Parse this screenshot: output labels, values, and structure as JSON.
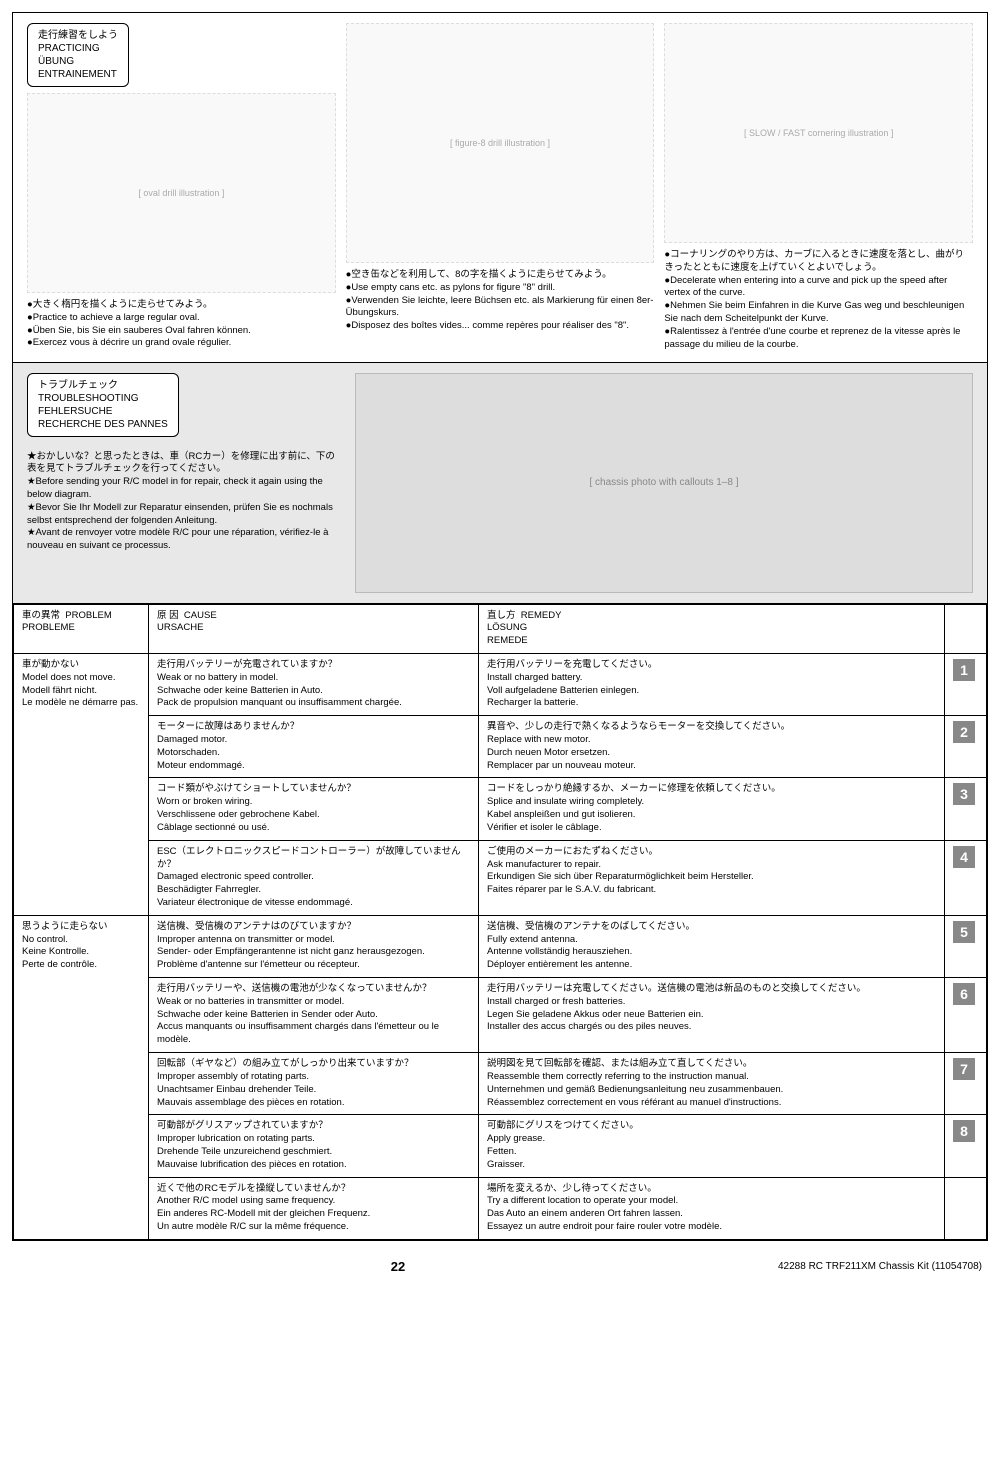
{
  "practice": {
    "heading_jp": "走行練習をしよう",
    "heading_en": "PRACTICING",
    "heading_de": "ÜBUNG",
    "heading_fr": "ENTRAINEMENT",
    "oval": {
      "jp": "●大きく楕円を描くように走らせてみよう。",
      "en": "●Practice to achieve a large regular oval.",
      "de": "●Üben Sie, bis Sie ein sauberes Oval fahren können.",
      "fr": "●Exercez vous à décrire un grand ovale régulier."
    },
    "figure8": {
      "jp": "●空き缶などを利用して、8の字を描くように走らせてみよう。",
      "en": "●Use empty cans etc. as pylons for figure \"8\" drill.",
      "de": "●Verwenden Sie leichte, leere Büchsen etc. als Markierung für einen 8er-Übungskurs.",
      "fr": "●Disposez des boîtes vides... comme repères pour réaliser des \"8\"."
    },
    "corner": {
      "jp": "●コーナリングのやり方は、カーブに入るときに速度を落とし、曲がりきったとともに速度を上げていくとよいでしょう。",
      "en": "●Decelerate when entering into a curve and pick up the speed after vertex of the curve.",
      "de": "●Nehmen Sie beim Einfahren in die Kurve Gas weg und beschleunigen Sie nach dem Scheitelpunkt der Kurve.",
      "fr": "●Ralentissez à l'entrée d'une courbe et reprenez de la vitesse après le passage du milieu de la courbe."
    }
  },
  "trouble": {
    "heading_jp": "トラブルチェック",
    "heading_en": "TROUBLESHOOTING",
    "heading_de": "FEHLERSUCHE",
    "heading_fr": "RECHERCHE DES PANNES",
    "intro_jp": "★おかしいな？と思ったときは、車（RCカー）を修理に出す前に、下の表を見てトラブルチェックを行ってください。",
    "intro_en": "★Before sending your R/C model in for repair, check it again using the below diagram.",
    "intro_de": "★Bevor Sie Ihr Modell zur Reparatur einsenden, prüfen Sie es nochmals selbst entsprechend der folgenden Anleitung.",
    "intro_fr": "★Avant de renvoyer votre modèle R/C pour une réparation, vérifiez-le à nouveau en suivant ce processus."
  },
  "table": {
    "headers": {
      "problem_jp": "車の異常",
      "problem_en": "PROBLEM",
      "problem_fr": "PROBLEME",
      "cause_jp": "原 因",
      "cause_en": "CAUSE",
      "cause_de": "URSACHE",
      "remedy_jp": "直し方",
      "remedy_en": "REMEDY",
      "remedy_de": "LÖSUNG",
      "remedy_fr": "REMEDE"
    },
    "problems": [
      {
        "label_jp": "車が動かない",
        "label_en": "Model does not move.",
        "label_de": "Modell fährt nicht.",
        "label_fr": "Le modèle ne démarre pas.",
        "rows": [
          {
            "num": "1",
            "cause_jp": "走行用バッテリーが充電されていますか？",
            "cause_en": "Weak or no battery in model.",
            "cause_de": "Schwache oder keine Batterien in Auto.",
            "cause_fr": "Pack de propulsion manquant ou insuffisamment chargée.",
            "remedy_jp": "走行用バッテリーを充電してください。",
            "remedy_en": "Install charged battery.",
            "remedy_de": "Voll aufgeladene Batterien einlegen.",
            "remedy_fr": "Recharger la batterie."
          },
          {
            "num": "2",
            "cause_jp": "モーターに故障はありませんか？",
            "cause_en": "Damaged motor.",
            "cause_de": "Motorschaden.",
            "cause_fr": "Moteur endommagé.",
            "remedy_jp": "異音や、少しの走行で熱くなるようならモーターを交換してください。",
            "remedy_en": "Replace with new motor.",
            "remedy_de": "Durch neuen Motor ersetzen.",
            "remedy_fr": "Remplacer par un nouveau moteur."
          },
          {
            "num": "3",
            "cause_jp": "コード類がやぶけてショートしていませんか？",
            "cause_en": "Worn or broken wiring.",
            "cause_de": "Verschlissene oder gebrochene Kabel.",
            "cause_fr": "Câblage sectionné ou usé.",
            "remedy_jp": "コードをしっかり絶縁するか、メーカーに修理を依頼してください。",
            "remedy_en": "Splice and insulate wiring completely.",
            "remedy_de": "Kabel anspleißen und gut isolieren.",
            "remedy_fr": "Vérifier et isoler le câblage."
          },
          {
            "num": "4",
            "cause_jp": "ESC（エレクトロニックスピードコントローラー）が故障していませんか？",
            "cause_en": "Damaged electronic speed controller.",
            "cause_de": "Beschädigter Fahrregler.",
            "cause_fr": "Variateur électronique de vitesse endommagé.",
            "remedy_jp": "ご使用のメーカーにおたずねください。",
            "remedy_en": "Ask manufacturer to repair.",
            "remedy_de": "Erkundigen Sie sich über Reparaturmöglichkeit beim Hersteller.",
            "remedy_fr": "Faites réparer par le S.A.V. du fabricant."
          }
        ]
      },
      {
        "label_jp": "思うように走らない",
        "label_en": "No control.",
        "label_de": "Keine Kontrolle.",
        "label_fr": "Perte de contrôle.",
        "rows": [
          {
            "num": "5",
            "cause_jp": "送信機、受信機のアンテナはのびていますか？",
            "cause_en": "Improper antenna on transmitter or model.",
            "cause_de": "Sender- oder Empfängerantenne ist nicht ganz herausgezogen.",
            "cause_fr": "Problème d'antenne sur l'émetteur ou récepteur.",
            "remedy_jp": "送信機、受信機のアンテナをのばしてください。",
            "remedy_en": "Fully extend antenna.",
            "remedy_de": "Antenne vollständig herausziehen.",
            "remedy_fr": "Déployer entièrement les antenne."
          },
          {
            "num": "6",
            "cause_jp": "走行用バッテリーや、送信機の電池が少なくなっていませんか？",
            "cause_en": "Weak or no batteries in transmitter or model.",
            "cause_de": "Schwache oder keine Batterien in Sender oder Auto.",
            "cause_fr": "Accus manquants ou insuffisamment chargés dans l'émetteur ou le modèle.",
            "remedy_jp": "走行用バッテリーは充電してください。送信機の電池は新品のものと交換してください。",
            "remedy_en": "Install charged or fresh batteries.",
            "remedy_de": "Legen Sie geladene Akkus oder neue Batterien ein.",
            "remedy_fr": "Installer des accus chargés ou des piles neuves."
          },
          {
            "num": "7",
            "cause_jp": "回転部（ギヤなど）の組み立てがしっかり出来ていますか？",
            "cause_en": "Improper assembly of rotating parts.",
            "cause_de": "Unachtsamer Einbau drehender Teile.",
            "cause_fr": "Mauvais assemblage des pièces en rotation.",
            "remedy_jp": "説明図を見て回転部を確認、または組み立て直してください。",
            "remedy_en": "Reassemble them correctly referring to the instruction manual.",
            "remedy_de": "Unternehmen und gemäß Bedienungsanleitung neu zusammenbauen.",
            "remedy_fr": "Réassemblez correctement en vous référant au manuel d'instructions."
          },
          {
            "num": "8",
            "cause_jp": "可動部がグリスアップされていますか？",
            "cause_en": "Improper lubrication on rotating parts.",
            "cause_de": "Drehende Teile unzureichend geschmiert.",
            "cause_fr": "Mauvaise lubrification des pièces en rotation.",
            "remedy_jp": "可動部にグリスをつけてください。",
            "remedy_en": "Apply grease.",
            "remedy_de": "Fetten.",
            "remedy_fr": "Graisser."
          },
          {
            "num": "",
            "cause_jp": "近くで他のRCモデルを操縦していませんか？",
            "cause_en": "Another R/C model using same frequency.",
            "cause_de": "Ein anderes RC-Modell mit der gleichen Frequenz.",
            "cause_fr": "Un autre modèle R/C sur la même fréquence.",
            "remedy_jp": "場所を変えるか、少し待ってください。",
            "remedy_en": "Try a different location to operate your model.",
            "remedy_de": "Das Auto an einem anderen Ort fahren lassen.",
            "remedy_fr": "Essayez un autre endroit pour faire rouler votre modèle."
          }
        ]
      }
    ]
  },
  "footer": {
    "page_num": "22",
    "code_right": "42288 RC TRF211XM Chassis Kit (11054708)"
  },
  "colors": {
    "border": "#000000",
    "grey_bg": "#e8e8e8",
    "badge_bg": "#888888",
    "badge_text": "#ffffff"
  }
}
